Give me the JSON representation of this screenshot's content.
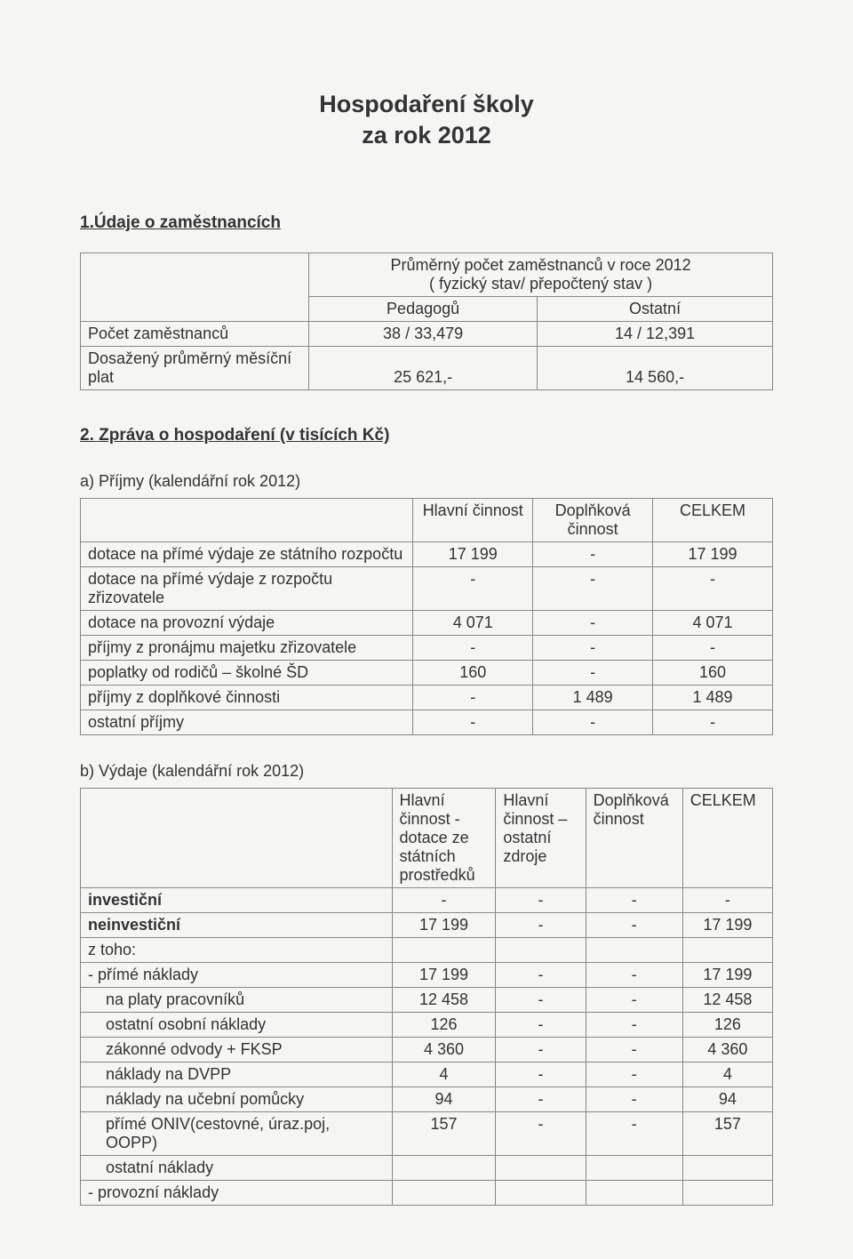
{
  "title_line1": "Hospodaření školy",
  "title_line2": "za rok 2012",
  "section1": {
    "heading": "1.Údaje o zaměstnancích",
    "table": {
      "header_main": "Průměrný počet zaměstnanců v roce 2012",
      "header_sub": "( fyzický stav/ přepočtený stav )",
      "col_a": "Pedagogů",
      "col_b": "Ostatní",
      "rows": [
        {
          "label": "Počet zaměstnanců",
          "a": "38 / 33,479",
          "b": "14 / 12,391"
        },
        {
          "label": "Dosažený průměrný měsíční plat",
          "a": "25 621,-",
          "b": "14 560,-"
        }
      ]
    }
  },
  "section2": {
    "heading": "2. Zpráva o hospodaření (v tisících Kč)",
    "part_a": {
      "caption": "a) Příjmy (kalendářní rok 2012)",
      "columns": [
        "",
        "Hlavní činnost",
        "Doplňková činnost",
        "CELKEM"
      ],
      "rows": [
        {
          "label": "dotace na přímé výdaje ze státního rozpočtu",
          "v1": "17 199",
          "v2": "-",
          "v3": "17 199"
        },
        {
          "label": "dotace na přímé výdaje z rozpočtu zřizovatele",
          "v1": "-",
          "v2": "-",
          "v3": "-"
        },
        {
          "label": "dotace na provozní výdaje",
          "v1": "4 071",
          "v2": "-",
          "v3": "4 071"
        },
        {
          "label": "příjmy z pronájmu  majetku zřizovatele",
          "v1": "-",
          "v2": "-",
          "v3": "-"
        },
        {
          "label": "poplatky od rodičů – školné ŠD",
          "v1": "160",
          "v2": "-",
          "v3": "160"
        },
        {
          "label": "příjmy z doplňkové  činnosti",
          "v1": "-",
          "v2": "1 489",
          "v3": "1 489"
        },
        {
          "label": "ostatní příjmy",
          "v1": "-",
          "v2": "-",
          "v3": "-"
        }
      ]
    },
    "part_b": {
      "caption": "b) Výdaje (kalendářní rok 2012)",
      "columns": [
        "",
        "Hlavní činnost  - dotace ze státních prostředků",
        "Hlavní činnost – ostatní zdroje",
        "Doplňková činnost",
        "CELKEM"
      ],
      "rows": [
        {
          "label": "investiční",
          "bold": true,
          "indent": 0,
          "v1": "-",
          "v2": "-",
          "v3": "-",
          "v4": "-"
        },
        {
          "label": "neinvestiční",
          "bold": true,
          "indent": 0,
          "v1": "17 199",
          "v2": "-",
          "v3": "-",
          "v4": "17 199"
        },
        {
          "label": "z toho:",
          "bold": false,
          "indent": 0,
          "v1": "",
          "v2": "",
          "v3": "",
          "v4": ""
        },
        {
          "label": "- přímé náklady",
          "bold": false,
          "indent": 0,
          "v1": "17 199",
          "v2": "-",
          "v3": "-",
          "v4": "17 199"
        },
        {
          "label": "na platy pracovníků",
          "bold": false,
          "indent": 1,
          "v1": "12 458",
          "v2": "-",
          "v3": "-",
          "v4": "12 458"
        },
        {
          "label": "ostatní osobní náklady",
          "bold": false,
          "indent": 1,
          "v1": "126",
          "v2": "-",
          "v3": "-",
          "v4": "126"
        },
        {
          "label": "zákonné odvody + FKSP",
          "bold": false,
          "indent": 1,
          "v1": "4 360",
          "v2": "-",
          "v3": "-",
          "v4": "4 360"
        },
        {
          "label": "náklady na DVPP",
          "bold": false,
          "indent": 1,
          "v1": "4",
          "v2": "-",
          "v3": "-",
          "v4": "4"
        },
        {
          "label": "náklady na učební pomůcky",
          "bold": false,
          "indent": 1,
          "v1": "94",
          "v2": "-",
          "v3": "-",
          "v4": "94"
        },
        {
          "label": "přímé ONIV(cestovné, úraz.poj, OOPP)",
          "bold": false,
          "indent": 1,
          "v1": "157",
          "v2": "-",
          "v3": "-",
          "v4": "157"
        },
        {
          "label": "ostatní náklady",
          "bold": false,
          "indent": 1,
          "v1": "",
          "v2": "",
          "v3": "",
          "v4": ""
        },
        {
          "label": "- provozní náklady",
          "bold": false,
          "indent": 0,
          "v1": "",
          "v2": "",
          "v3": "",
          "v4": ""
        }
      ]
    }
  },
  "styling": {
    "background_color": "#f5f5f3",
    "text_color": "#333",
    "border_color": "#888",
    "title_fontsize": 27,
    "heading_fontsize": 19,
    "body_fontsize": 18
  }
}
